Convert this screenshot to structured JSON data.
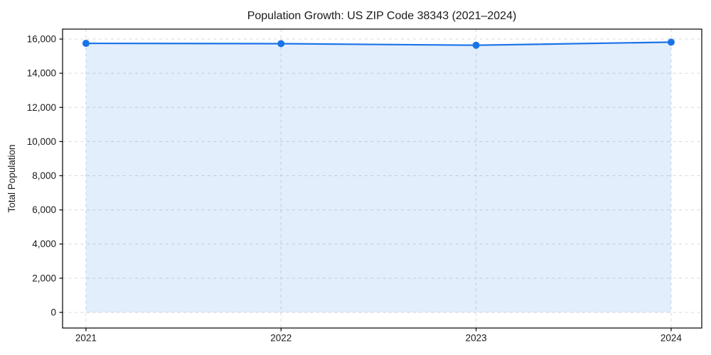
{
  "figure": {
    "background": "#ffffff"
  },
  "chart_data": {
    "type": "line",
    "title": "Population Growth: US ZIP Code 38343 (2021–2024)",
    "xlabel": "",
    "ylabel": "Total Population",
    "categories": [
      "2021",
      "2022",
      "2023",
      "2024"
    ],
    "x": [
      2021,
      2022,
      2023,
      2024
    ],
    "series": [
      {
        "name": "Total Population",
        "values": [
          15750,
          15730,
          15640,
          15820
        ]
      }
    ],
    "yticks": [
      0,
      2000,
      4000,
      6000,
      8000,
      10000,
      12000,
      14000,
      16000
    ],
    "ytick_labels": [
      "0",
      "2,000",
      "4,000",
      "6,000",
      "8,000",
      "10,000",
      "12,000",
      "14,000",
      "16,000"
    ],
    "xtick_labels": [
      "2021",
      "2022",
      "2023",
      "2024"
    ],
    "ylim": [
      -915,
      16583
    ],
    "xlim": [
      2020.88,
      2024.157
    ],
    "grid": true,
    "grid_style": "dashed",
    "legend": "none",
    "area_fill_to": 0,
    "colors": {
      "line": "#1a73e8",
      "marker": "#1a73e8",
      "area_fill": "rgba(26,115,232,0.12)",
      "grid": "#d7d7d7",
      "spine": "#000000",
      "text": "#1a1a1a"
    }
  }
}
